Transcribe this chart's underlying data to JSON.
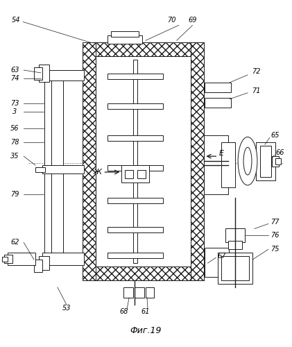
{
  "title": "Фиг.19",
  "bg_color": "#ffffff",
  "line_color": "#1a1a1a",
  "fig_w": 4.21,
  "fig_h": 5.0,
  "dpi": 100
}
